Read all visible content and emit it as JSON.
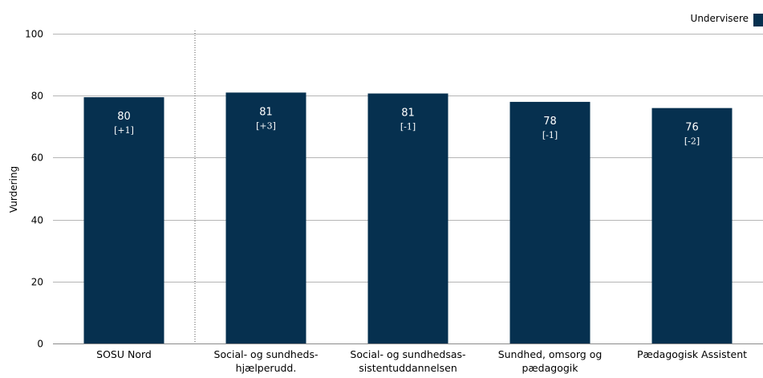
{
  "chart_data": {
    "type": "bar",
    "ylabel": "Vurdering",
    "ylim": [
      0,
      100
    ],
    "yticks": [
      0,
      20,
      40,
      60,
      80,
      100
    ],
    "grid": true,
    "legend": {
      "position": "top-right",
      "entries": [
        {
          "name": "Undervisere",
          "color": "#06304f"
        }
      ]
    },
    "bar_color": "#06304f",
    "separator_after_category": 0,
    "categories": [
      {
        "lines": [
          "SOSU Nord"
        ]
      },
      {
        "lines": [
          "Social- og sundheds-",
          "hjælperudd."
        ]
      },
      {
        "lines": [
          "Social- og sundhedsas-",
          "sistentuddannelsen"
        ]
      },
      {
        "lines": [
          "Sundhed, omsorg og",
          "pædagogik"
        ]
      },
      {
        "lines": [
          "Pædagogisk Assistent"
        ]
      }
    ],
    "series": [
      {
        "name": "Undervisere",
        "values": [
          79.5,
          81,
          80.7,
          78,
          76
        ],
        "value_labels": [
          "80",
          "81",
          "81",
          "78",
          "76"
        ],
        "change_labels": [
          "[+1]",
          "[+3]",
          "[-1]",
          "[-1]",
          "[-2]"
        ]
      }
    ]
  }
}
